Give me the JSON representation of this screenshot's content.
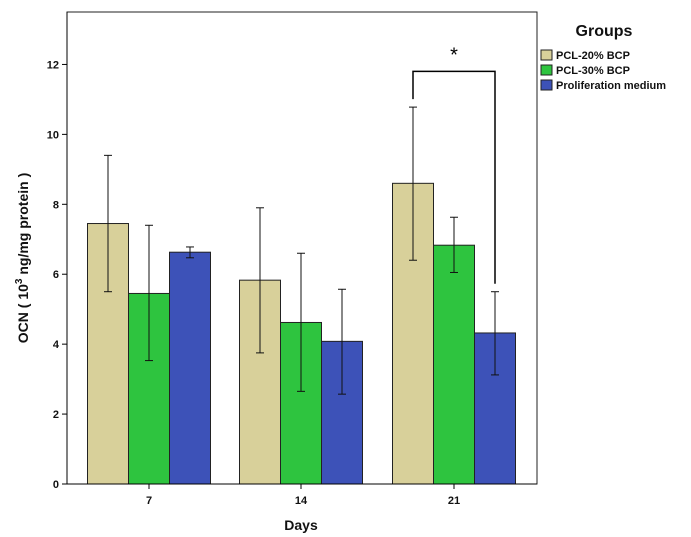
{
  "chart_data": {
    "type": "bar",
    "xlabel": "Days",
    "ylabel_prefix": "OCN ( 10",
    "ylabel_sup": "3",
    "ylabel_suffix": " ng/mg protein )",
    "categories": [
      "7",
      "14",
      "21"
    ],
    "ylim": [
      0,
      13.5
    ],
    "yticks": [
      "0",
      "2",
      "4",
      "6",
      "8",
      "10",
      "12"
    ],
    "grid": false,
    "legend": {
      "title": "Groups",
      "placement": "top-right",
      "entries": [
        "PCL-20% BCP",
        "PCL-30% BCP",
        "Proliferation medium"
      ]
    },
    "series": [
      {
        "name": "PCL-20% BCP",
        "color": "#d8d09a",
        "values": [
          7.45,
          5.83,
          8.6
        ],
        "err_low": [
          5.5,
          3.75,
          6.4
        ],
        "err_high": [
          9.4,
          7.9,
          10.78
        ]
      },
      {
        "name": "PCL-30% BCP",
        "color": "#2ec43f",
        "values": [
          5.45,
          4.62,
          6.83
        ],
        "err_low": [
          3.53,
          2.65,
          6.05
        ],
        "err_high": [
          7.4,
          6.6,
          7.63
        ]
      },
      {
        "name": "Proliferation medium",
        "color": "#3d52b8",
        "values": [
          6.63,
          4.08,
          4.32
        ],
        "err_low": [
          6.47,
          2.57,
          3.12
        ],
        "err_high": [
          6.78,
          5.57,
          5.5
        ]
      }
    ],
    "annotation": {
      "text": "*",
      "category": "21",
      "from_series": 0,
      "to_series": 2,
      "y": 11.8
    }
  }
}
